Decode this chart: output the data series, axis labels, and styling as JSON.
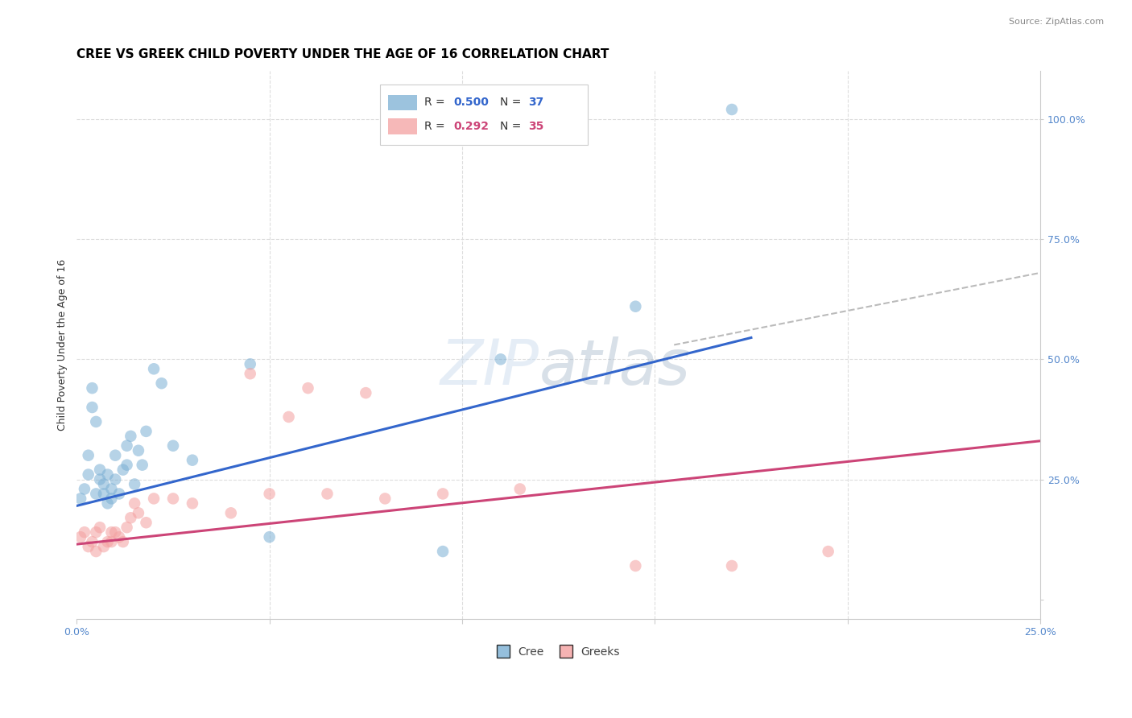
{
  "title": "CREE VS GREEK CHILD POVERTY UNDER THE AGE OF 16 CORRELATION CHART",
  "source": "Source: ZipAtlas.com",
  "ylabel": "Child Poverty Under the Age of 16",
  "xlim": [
    0.0,
    0.25
  ],
  "ylim": [
    -0.04,
    1.1
  ],
  "xticks": [
    0.0,
    0.05,
    0.1,
    0.15,
    0.2,
    0.25
  ],
  "xticklabels": [
    "0.0%",
    "",
    "",
    "",
    "",
    "25.0%"
  ],
  "right_yticks": [
    0.0,
    0.25,
    0.5,
    0.75,
    1.0
  ],
  "right_yticklabels": [
    "",
    "25.0%",
    "50.0%",
    "75.0%",
    "100.0%"
  ],
  "cree_color": "#7BAFD4",
  "greek_color": "#F4A0A0",
  "cree_line_color": "#3366CC",
  "greek_line_color": "#CC4477",
  "dashed_line_color": "#BBBBBB",
  "legend_R_cree": "0.500",
  "legend_N_cree": "37",
  "legend_R_greek": "0.292",
  "legend_N_greek": "35",
  "watermark": "ZIPatlas",
  "cree_scatter_x": [
    0.001,
    0.002,
    0.003,
    0.003,
    0.004,
    0.004,
    0.005,
    0.005,
    0.006,
    0.006,
    0.007,
    0.007,
    0.008,
    0.008,
    0.009,
    0.009,
    0.01,
    0.01,
    0.011,
    0.012,
    0.013,
    0.013,
    0.014,
    0.015,
    0.016,
    0.017,
    0.018,
    0.02,
    0.022,
    0.025,
    0.03,
    0.045,
    0.05,
    0.095,
    0.11,
    0.145,
    0.17
  ],
  "cree_scatter_y": [
    0.21,
    0.23,
    0.3,
    0.26,
    0.44,
    0.4,
    0.37,
    0.22,
    0.25,
    0.27,
    0.22,
    0.24,
    0.2,
    0.26,
    0.21,
    0.23,
    0.3,
    0.25,
    0.22,
    0.27,
    0.32,
    0.28,
    0.34,
    0.24,
    0.31,
    0.28,
    0.35,
    0.48,
    0.45,
    0.32,
    0.29,
    0.49,
    0.13,
    0.1,
    0.5,
    0.61,
    1.02
  ],
  "greek_scatter_x": [
    0.001,
    0.002,
    0.003,
    0.004,
    0.005,
    0.005,
    0.006,
    0.007,
    0.008,
    0.009,
    0.009,
    0.01,
    0.011,
    0.012,
    0.013,
    0.014,
    0.015,
    0.016,
    0.018,
    0.02,
    0.025,
    0.03,
    0.04,
    0.045,
    0.05,
    0.055,
    0.06,
    0.065,
    0.075,
    0.08,
    0.095,
    0.115,
    0.145,
    0.17,
    0.195
  ],
  "greek_scatter_y": [
    0.13,
    0.14,
    0.11,
    0.12,
    0.14,
    0.1,
    0.15,
    0.11,
    0.12,
    0.14,
    0.12,
    0.14,
    0.13,
    0.12,
    0.15,
    0.17,
    0.2,
    0.18,
    0.16,
    0.21,
    0.21,
    0.2,
    0.18,
    0.47,
    0.22,
    0.38,
    0.44,
    0.22,
    0.43,
    0.21,
    0.22,
    0.23,
    0.07,
    0.07,
    0.1
  ],
  "cree_line_x": [
    0.0,
    0.175
  ],
  "cree_line_y": [
    0.195,
    0.545
  ],
  "greek_line_x": [
    0.0,
    0.25
  ],
  "greek_line_y": [
    0.115,
    0.33
  ],
  "dashed_line_x": [
    0.155,
    0.25
  ],
  "dashed_line_y": [
    0.53,
    0.68
  ],
  "marker_size": 110,
  "alpha": 0.55,
  "grid_color": "#DDDDDD",
  "background_color": "#FFFFFF",
  "title_fontsize": 11,
  "axis_label_fontsize": 9,
  "tick_fontsize": 9,
  "legend_fontsize": 10,
  "bottom_legend_cree": "Cree",
  "bottom_legend_greek": "Greeks"
}
